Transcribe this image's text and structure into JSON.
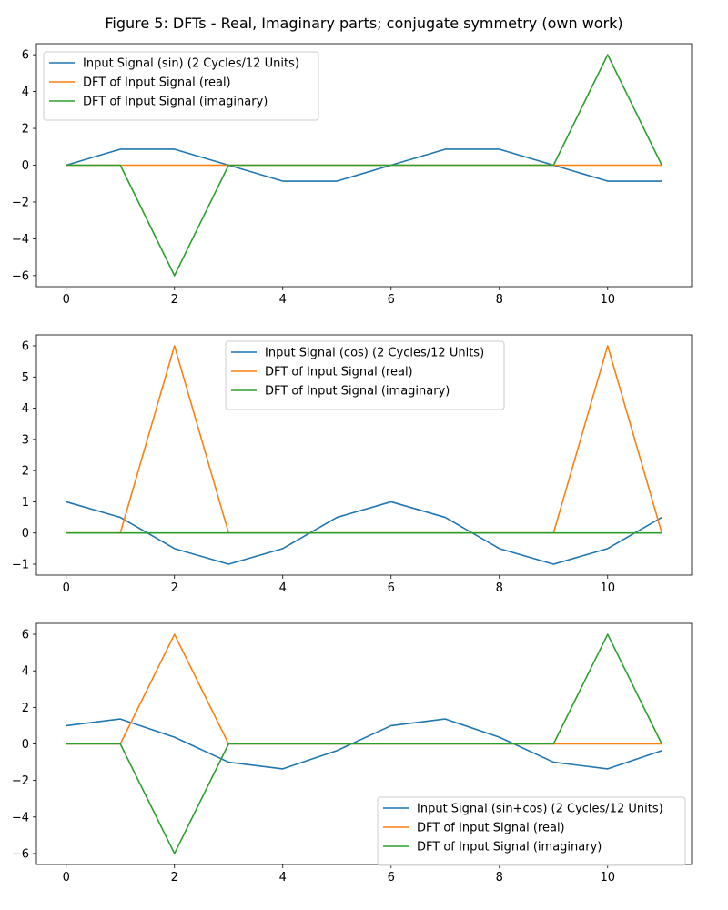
{
  "figure_title": "Figure 5: DFTs - Real, Imaginary parts; conjugate symmetry (own work)",
  "colors": {
    "blue": "#1f77b4",
    "orange": "#ff7f0e",
    "green": "#2ca02c"
  },
  "chart_data": [
    {
      "type": "line",
      "title": "",
      "xlabel": "",
      "ylabel": "",
      "xlim": [
        -0.55,
        11.55
      ],
      "ylim": [
        -6.6,
        6.6
      ],
      "xticks": [
        0,
        2,
        4,
        6,
        8,
        10
      ],
      "yticks": [
        -6,
        -4,
        -2,
        0,
        2,
        4,
        6
      ],
      "x": [
        0,
        1,
        2,
        3,
        4,
        5,
        6,
        7,
        8,
        9,
        10,
        11
      ],
      "legend_position": "upper left",
      "series": [
        {
          "name": "Input Signal (sin) (2 Cycles/12 Units)",
          "color": "#1f77b4",
          "values": [
            0,
            0.866,
            0.866,
            0,
            -0.866,
            -0.866,
            0,
            0.866,
            0.866,
            0,
            -0.866,
            -0.866
          ]
        },
        {
          "name": "DFT of Input Signal (real)",
          "color": "#ff7f0e",
          "values": [
            0,
            0,
            0,
            0,
            0,
            0,
            0,
            0,
            0,
            0,
            0,
            0
          ]
        },
        {
          "name": "DFT of Input Signal (imaginary)",
          "color": "#2ca02c",
          "values": [
            0,
            0,
            -6,
            0,
            0,
            0,
            0,
            0,
            0,
            0,
            6,
            0
          ]
        }
      ]
    },
    {
      "type": "line",
      "title": "",
      "xlabel": "",
      "ylabel": "",
      "xlim": [
        -0.55,
        11.55
      ],
      "ylim": [
        -1.35,
        6.35
      ],
      "xticks": [
        0,
        2,
        4,
        6,
        8,
        10
      ],
      "yticks": [
        -1,
        0,
        1,
        2,
        3,
        4,
        5,
        6
      ],
      "x": [
        0,
        1,
        2,
        3,
        4,
        5,
        6,
        7,
        8,
        9,
        10,
        11
      ],
      "legend_position": "upper center",
      "series": [
        {
          "name": "Input Signal (cos) (2 Cycles/12 Units)",
          "color": "#1f77b4",
          "values": [
            1,
            0.5,
            -0.5,
            -1,
            -0.5,
            0.5,
            1,
            0.5,
            -0.5,
            -1,
            -0.5,
            0.5
          ]
        },
        {
          "name": "DFT of Input Signal (real)",
          "color": "#ff7f0e",
          "values": [
            0,
            0,
            6,
            0,
            0,
            0,
            0,
            0,
            0,
            0,
            6,
            0
          ]
        },
        {
          "name": "DFT of Input Signal (imaginary)",
          "color": "#2ca02c",
          "values": [
            0,
            0,
            0,
            0,
            0,
            0,
            0,
            0,
            0,
            0,
            0,
            0
          ]
        }
      ]
    },
    {
      "type": "line",
      "title": "",
      "xlabel": "",
      "ylabel": "",
      "xlim": [
        -0.55,
        11.55
      ],
      "ylim": [
        -6.6,
        6.6
      ],
      "xticks": [
        0,
        2,
        4,
        6,
        8,
        10
      ],
      "yticks": [
        -6,
        -4,
        -2,
        0,
        2,
        4,
        6
      ],
      "x": [
        0,
        1,
        2,
        3,
        4,
        5,
        6,
        7,
        8,
        9,
        10,
        11
      ],
      "legend_position": "lower right",
      "series": [
        {
          "name": "Input Signal (sin+cos) (2 Cycles/12 Units)",
          "color": "#1f77b4",
          "values": [
            1,
            1.366,
            0.366,
            -1,
            -1.366,
            -0.366,
            1,
            1.366,
            0.366,
            -1,
            -1.366,
            -0.366
          ]
        },
        {
          "name": "DFT of Input Signal (real)",
          "color": "#ff7f0e",
          "values": [
            0,
            0,
            6,
            0,
            0,
            0,
            0,
            0,
            0,
            0,
            0,
            0
          ]
        },
        {
          "name": "DFT of Input Signal (imaginary)",
          "color": "#2ca02c",
          "values": [
            0,
            0,
            -6,
            0,
            0,
            0,
            0,
            0,
            0,
            0,
            6,
            0
          ]
        }
      ]
    }
  ]
}
